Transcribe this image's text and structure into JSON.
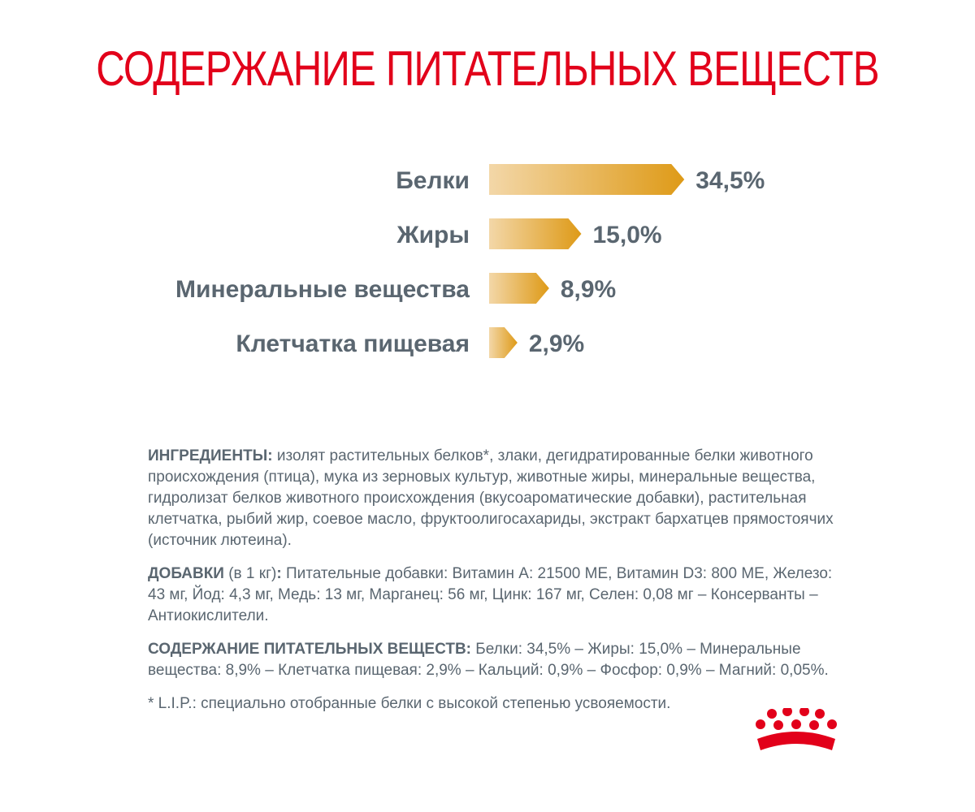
{
  "title": "СОДЕРЖАНИЕ ПИТАТЕЛЬНЫХ ВЕЩЕСТВ",
  "chart_data": {
    "type": "bar",
    "orientation": "horizontal",
    "categories": [
      "Белки",
      "Жиры",
      "Минеральные вещества",
      "Клетчатка пищевая"
    ],
    "values": [
      34.5,
      15.0,
      8.9,
      2.9
    ],
    "value_labels": [
      "34,5%",
      "15,0%",
      "8,9%",
      "2,9%"
    ],
    "unit": "%",
    "colors": {
      "bar_start": "#f3d7a8",
      "bar_end": "#de9a17"
    }
  },
  "sections": {
    "ingredients": {
      "heading": "ИНГРЕДИЕНТЫ:",
      "text": " изолят растительных белков*, злаки, дегидратированные белки животного происхождения (птица), мука из зерновых культур, животные жиры, минеральные вещества, гидролизат белков животного происхождения (вкусоароматические добавки), растительная клетчатка, рыбий жир, соевое масло, фруктоолигосахариды, экстракт бархатцев прямостоячих (источник лютеина)."
    },
    "additives": {
      "heading": "ДОБАВКИ",
      "qualifier": " (в 1 кг)",
      "colon": ":",
      "text": " Питательные добавки: Витамин А: 21500 МЕ, Витамин D3: 800 МЕ, Железо: 43 мг, Йод: 4,3 мг, Медь: 13 мг, Марганец: 56 мг, Цинк: 167 мг, Селен: 0,08 мг – Консерванты – Антиокислители."
    },
    "nutrients": {
      "heading": "СОДЕРЖАНИЕ ПИТАТЕЛЬНЫХ ВЕЩЕСТВ:",
      "text": " Белки: 34,5% – Жиры: 15,0% – Минеральные вещества: 8,9% – Клетчатка пищевая: 2,9% – Кальций: 0,9% – Фосфор: 0,9% – Магний: 0,05%."
    },
    "footnote": "* L.I.P.: специально отобранные белки с высокой степенью усвояемости."
  },
  "logo": {
    "icon": "royal-crown-icon",
    "color": "#e2001a"
  }
}
